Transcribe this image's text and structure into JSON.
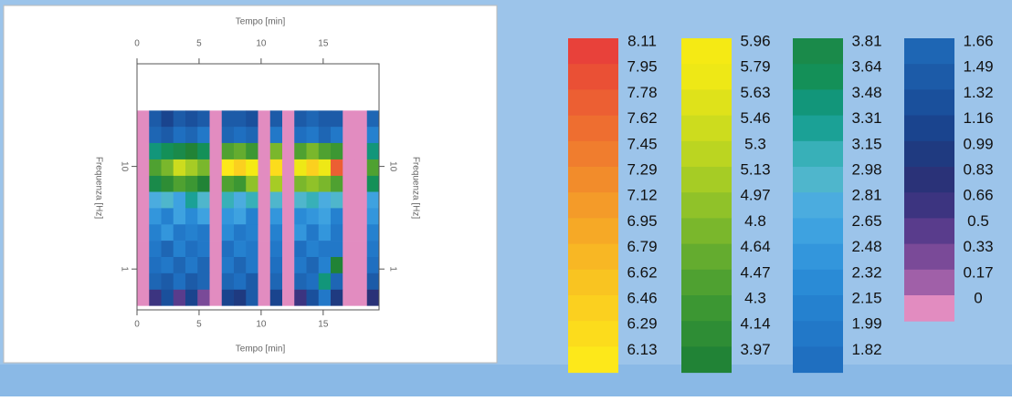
{
  "chart_data": {
    "type": "heatmap",
    "xlabel_top": "Tempo [min]",
    "xlabel": "Tempo [min]",
    "ylabel": "Frequenza [Hz]",
    "ylabel_right": "Frequenza [Hz]",
    "xlim": [
      0,
      19.5
    ],
    "xticks": [
      0,
      5,
      10,
      15
    ],
    "ylim": [
      0.4,
      100
    ],
    "yticks": [
      1,
      10
    ],
    "yscale": "log",
    "x_edges": [
      0,
      0.975,
      1.95,
      2.925,
      3.9,
      4.875,
      5.85,
      6.825,
      7.8,
      8.775,
      9.75,
      10.725,
      11.7,
      12.675,
      13.65,
      14.625,
      15.6,
      16.575,
      17.55,
      18.525,
      19.5
    ],
    "y_edges": [
      35,
      24.3,
      16.9,
      11.7,
      8.1,
      5.65,
      3.92,
      2.72,
      1.89,
      1.31,
      0.91,
      0.63,
      0.44
    ],
    "z": [
      [
        0,
        1.5,
        1.3,
        1.6,
        1.4,
        1.5,
        0,
        1.6,
        1.5,
        1.4,
        0,
        1.6,
        0,
        1.5,
        1.7,
        1.5,
        1.6,
        0,
        0,
        1.8
      ],
      [
        0,
        1.8,
        1.6,
        1.9,
        1.7,
        2.0,
        0,
        1.8,
        1.9,
        1.7,
        0,
        2.0,
        0,
        1.9,
        2.0,
        1.8,
        2.0,
        0,
        0,
        2.2
      ],
      [
        0,
        3.5,
        3.7,
        3.9,
        4.0,
        3.8,
        0,
        4.5,
        4.7,
        4.4,
        0,
        4.9,
        0,
        4.6,
        4.8,
        4.5,
        4.4,
        0,
        0,
        3.6
      ],
      [
        0,
        4.6,
        4.9,
        5.5,
        5.2,
        4.8,
        0,
        6.2,
        6.5,
        6.0,
        0,
        6.4,
        0,
        5.8,
        6.6,
        5.9,
        7.8,
        0,
        0,
        4.5
      ],
      [
        0,
        3.9,
        4.2,
        4.5,
        4.4,
        4.1,
        0,
        4.6,
        4.3,
        5.0,
        0,
        5.2,
        0,
        4.8,
        5.0,
        4.9,
        4.6,
        0,
        0,
        3.7
      ],
      [
        0,
        2.9,
        3.1,
        2.8,
        3.4,
        3.0,
        0,
        3.2,
        2.9,
        3.3,
        0,
        3.1,
        0,
        3.0,
        3.2,
        2.9,
        3.1,
        0,
        0,
        2.8
      ],
      [
        0,
        2.6,
        2.3,
        2.7,
        2.4,
        2.8,
        0,
        2.5,
        2.7,
        2.2,
        0,
        2.6,
        0,
        2.4,
        2.6,
        2.8,
        2.3,
        0,
        0,
        2.5
      ],
      [
        0,
        2.2,
        2.5,
        2.0,
        2.3,
        2.1,
        0,
        2.4,
        2.1,
        2.3,
        0,
        2.2,
        0,
        2.5,
        2.0,
        2.6,
        2.1,
        0,
        0,
        2.3
      ],
      [
        0,
        2.0,
        1.8,
        2.2,
        1.9,
        2.1,
        0,
        1.9,
        2.2,
        2.0,
        0,
        2.1,
        0,
        1.9,
        2.3,
        2.1,
        2.0,
        0,
        0,
        2.0
      ],
      [
        0,
        1.9,
        2.1,
        1.7,
        2.0,
        1.8,
        0,
        2.0,
        1.8,
        2.1,
        0,
        1.9,
        0,
        2.0,
        1.8,
        2.2,
        4.0,
        0,
        0,
        1.9
      ],
      [
        0,
        1.7,
        1.5,
        1.9,
        1.6,
        1.8,
        0,
        1.7,
        1.9,
        1.6,
        0,
        1.8,
        0,
        1.7,
        1.9,
        3.5,
        1.8,
        0,
        0,
        1.6
      ],
      [
        0,
        0.8,
        1.4,
        0.6,
        1.2,
        0.4,
        0,
        1.3,
        1.0,
        1.5,
        0,
        1.2,
        0,
        0.7,
        1.4,
        2.0,
        1.1,
        0,
        0,
        0.9
      ]
    ],
    "colorscale": [
      [
        {
          "value": 8.11,
          "color": "#e8413a"
        },
        {
          "value": 7.95,
          "color": "#ea5035"
        },
        {
          "value": 7.78,
          "color": "#ec5f33"
        },
        {
          "value": 7.62,
          "color": "#ee6e30"
        },
        {
          "value": 7.45,
          "color": "#f07d2e"
        },
        {
          "value": 7.29,
          "color": "#f28c2b"
        },
        {
          "value": 7.12,
          "color": "#f49b29"
        },
        {
          "value": 6.95,
          "color": "#f6a926"
        },
        {
          "value": 6.79,
          "color": "#f8b724"
        },
        {
          "value": 6.62,
          "color": "#f9c421"
        },
        {
          "value": 6.46,
          "color": "#fbd01f"
        },
        {
          "value": 6.29,
          "color": "#fcdc1c"
        },
        {
          "value": 6.13,
          "color": "#fde81a"
        }
      ],
      [
        {
          "value": 5.96,
          "color": "#f5ea14"
        },
        {
          "value": 5.79,
          "color": "#eee816"
        },
        {
          "value": 5.63,
          "color": "#dfe21a"
        },
        {
          "value": 5.46,
          "color": "#cddc1e"
        },
        {
          "value": 5.3,
          "color": "#bbd521"
        },
        {
          "value": 5.13,
          "color": "#a6cc25"
        },
        {
          "value": 4.97,
          "color": "#90c229"
        },
        {
          "value": 4.8,
          "color": "#7ab72c"
        },
        {
          "value": 4.64,
          "color": "#64ac2f"
        },
        {
          "value": 4.47,
          "color": "#4fa131"
        },
        {
          "value": 4.3,
          "color": "#3c9733"
        },
        {
          "value": 4.14,
          "color": "#2e8d35"
        },
        {
          "value": 3.97,
          "color": "#218336"
        }
      ],
      [
        {
          "value": 3.81,
          "color": "#1a8a4a"
        },
        {
          "value": 3.64,
          "color": "#149058"
        },
        {
          "value": 3.48,
          "color": "#12967a"
        },
        {
          "value": 3.31,
          "color": "#1ba196"
        },
        {
          "value": 3.15,
          "color": "#38b0b8"
        },
        {
          "value": 2.98,
          "color": "#4fb6cc"
        },
        {
          "value": 2.81,
          "color": "#4bacdf"
        },
        {
          "value": 2.65,
          "color": "#3ea2e0"
        },
        {
          "value": 2.48,
          "color": "#3396dc"
        },
        {
          "value": 2.32,
          "color": "#2a8bd6"
        },
        {
          "value": 2.15,
          "color": "#2581cf"
        },
        {
          "value": 1.99,
          "color": "#2278c8"
        },
        {
          "value": 1.82,
          "color": "#1f6fc0"
        }
      ],
      [
        {
          "value": 1.66,
          "color": "#1e66b4"
        },
        {
          "value": 1.49,
          "color": "#1c5ba8"
        },
        {
          "value": 1.32,
          "color": "#1a509c"
        },
        {
          "value": 1.16,
          "color": "#1a448e"
        },
        {
          "value": 0.99,
          "color": "#1f3a80"
        },
        {
          "value": 0.83,
          "color": "#2a3278"
        },
        {
          "value": 0.66,
          "color": "#3c3480"
        },
        {
          "value": 0.5,
          "color": "#593c8c"
        },
        {
          "value": 0.33,
          "color": "#7a4a98"
        },
        {
          "value": 0.17,
          "color": "#a060a8"
        },
        {
          "value": 0,
          "color": "#e28cc0"
        }
      ]
    ]
  }
}
